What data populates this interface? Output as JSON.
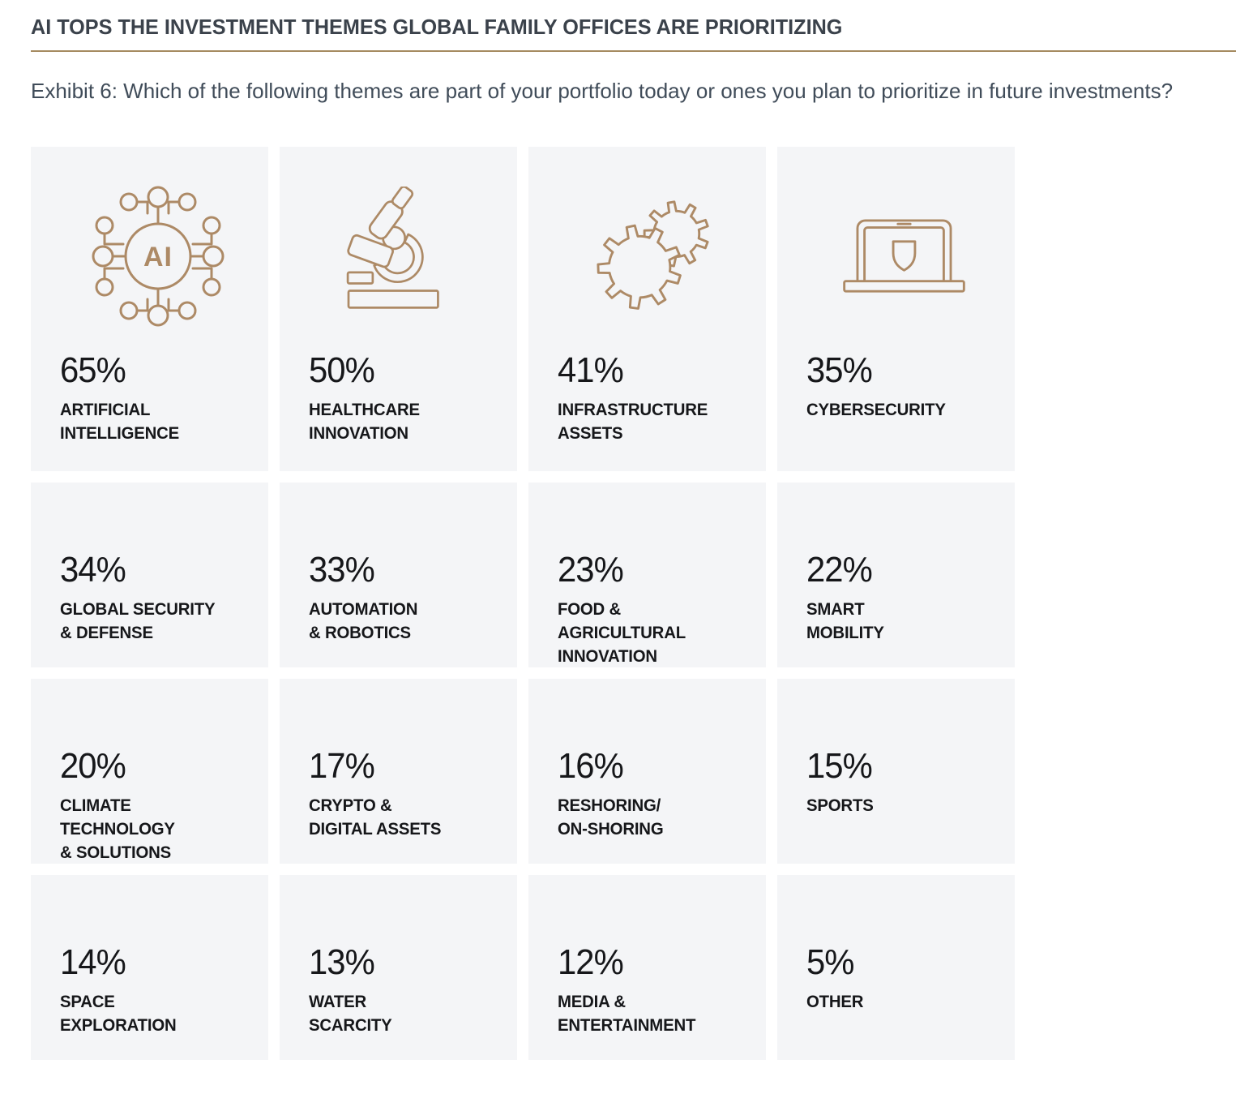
{
  "header": {
    "title": "AI TOPS THE INVESTMENT THEMES GLOBAL FAMILY OFFICES ARE PRIORITIZING",
    "subtitle": "Exhibit 6: Which of the following themes are part of your portfolio today or ones you plan to prioritize in future investments?"
  },
  "colors": {
    "accent_rule": "#a58a60",
    "icon_stroke": "#ad8a66",
    "card_background": "#f4f5f7",
    "title_text": "#3b424b",
    "subtitle_text": "#404c59",
    "value_text": "#16171a"
  },
  "icons": {
    "ai_center_text": "AI"
  },
  "cards": [
    {
      "pct": "65%",
      "label_lines": [
        "ARTIFICIAL",
        "INTELLIGENCE"
      ],
      "icon": "ai-network-icon"
    },
    {
      "pct": "50%",
      "label_lines": [
        "HEALTHCARE",
        "INNOVATION"
      ],
      "icon": "microscope-icon"
    },
    {
      "pct": "41%",
      "label_lines": [
        "INFRASTRUCTURE",
        "ASSETS"
      ],
      "icon": "gears-icon"
    },
    {
      "pct": "35%",
      "label_lines": [
        "CYBERSECURITY"
      ],
      "icon": "laptop-shield-icon"
    },
    {
      "pct": "34%",
      "label_lines": [
        "GLOBAL SECURITY",
        "& DEFENSE"
      ]
    },
    {
      "pct": "33%",
      "label_lines": [
        "AUTOMATION",
        "& ROBOTICS"
      ]
    },
    {
      "pct": "23%",
      "label_lines": [
        "FOOD & AGRICULTURAL",
        "INNOVATION"
      ]
    },
    {
      "pct": "22%",
      "label_lines": [
        "SMART",
        "MOBILITY"
      ]
    },
    {
      "pct": "20%",
      "label_lines": [
        "CLIMATE TECHNOLOGY",
        "& SOLUTIONS"
      ]
    },
    {
      "pct": "17%",
      "label_lines": [
        "CRYPTO &",
        "DIGITAL ASSETS"
      ]
    },
    {
      "pct": "16%",
      "label_lines": [
        "RESHORING/",
        "ON-SHORING"
      ]
    },
    {
      "pct": "15%",
      "label_lines": [
        "SPORTS"
      ]
    },
    {
      "pct": "14%",
      "label_lines": [
        "SPACE",
        "EXPLORATION"
      ]
    },
    {
      "pct": "13%",
      "label_lines": [
        "WATER",
        "SCARCITY"
      ]
    },
    {
      "pct": "12%",
      "label_lines": [
        "MEDIA &",
        "ENTERTAINMENT"
      ]
    },
    {
      "pct": "5%",
      "label_lines": [
        "OTHER"
      ]
    }
  ],
  "chart_data": {
    "type": "table",
    "title": "AI TOPS THE INVESTMENT THEMES GLOBAL FAMILY OFFICES ARE PRIORITIZING",
    "subtitle": "Exhibit 6: Which of the following themes are part of your portfolio today or ones you plan to prioritize in future investments?",
    "unit": "percent of respondents",
    "categories": [
      "Artificial Intelligence",
      "Healthcare Innovation",
      "Infrastructure Assets",
      "Cybersecurity",
      "Global Security & Defense",
      "Automation & Robotics",
      "Food & Agricultural Innovation",
      "Smart Mobility",
      "Climate Technology & Solutions",
      "Crypto & Digital Assets",
      "Reshoring/On-shoring",
      "Sports",
      "Space Exploration",
      "Water Scarcity",
      "Media & Entertainment",
      "Other"
    ],
    "values": [
      65,
      50,
      41,
      35,
      34,
      33,
      23,
      22,
      20,
      17,
      16,
      15,
      14,
      13,
      12,
      5
    ],
    "layout": "4x4 grid of gray tiles in descending order; first row tiles include bronze outline icons"
  }
}
